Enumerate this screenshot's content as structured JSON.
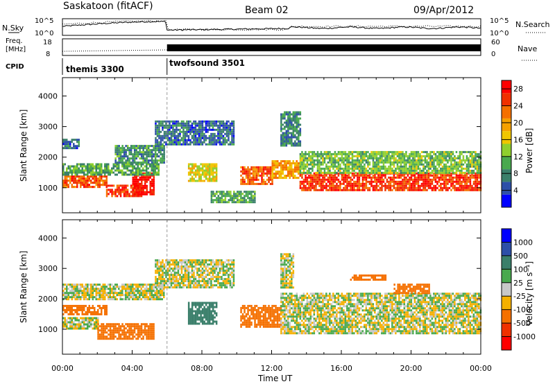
{
  "header": {
    "title": "Saskatoon (fitACF)",
    "beam": "Beam 02",
    "date": "09/Apr/2012"
  },
  "summary": {
    "nsky_label": "N.Sky",
    "nsearch_label": "N.Search",
    "freq_label_line1": "Freq.",
    "freq_label_line2": "[MHz]",
    "nave_label": "Nave",
    "cpid_label": "CPID",
    "noise_ticks": [
      "10^5",
      "10^0"
    ],
    "freq_ticks": [
      "18",
      "8"
    ],
    "nave_ticks": [
      "60",
      "0"
    ]
  },
  "cpid": [
    {
      "name": "themis 3300",
      "start_hour": 0,
      "end_hour": 6.0
    },
    {
      "name": "twofsound 3501",
      "start_hour": 6.0,
      "end_hour": 24
    }
  ],
  "chart_data": [
    {
      "type": "heatmap",
      "parameter": "power",
      "ylabel": "Slant Range [km]",
      "xlabel": "Time UT",
      "x_ticks": [
        "00:00",
        "04:00",
        "08:00",
        "12:00",
        "16:00",
        "20:00",
        "00:00"
      ],
      "xlim_hours": [
        0,
        24
      ],
      "ylim_km": [
        180,
        4600
      ],
      "y_ticks": [
        1000,
        2000,
        3000,
        4000
      ],
      "colorbar": {
        "label": "Power [dB]",
        "ticks": [
          "4",
          "8",
          "12",
          "16",
          "20",
          "24",
          "28"
        ],
        "range": [
          0,
          30
        ],
        "colors": [
          "#0000ff",
          "#2d4fa8",
          "#3a7f6a",
          "#49a94e",
          "#8fcf2e",
          "#f0c600",
          "#f5a000",
          "#f57000",
          "#f03000",
          "#ff0000"
        ]
      },
      "echo_bands": [
        {
          "t0": 0.0,
          "t1": 2.5,
          "r0": 1000,
          "r1": 1400,
          "value": 24
        },
        {
          "t0": 2.5,
          "t1": 4.5,
          "r0": 700,
          "r1": 1100,
          "value": 26
        },
        {
          "t0": 4.0,
          "t1": 5.2,
          "r0": 800,
          "r1": 1500,
          "value": 28
        },
        {
          "t0": 0.0,
          "t1": 5.5,
          "r0": 1400,
          "r1": 1800,
          "value": 10
        },
        {
          "t0": 0.0,
          "t1": 0.9,
          "r0": 2300,
          "r1": 2600,
          "value": 6
        },
        {
          "t0": 3.0,
          "t1": 5.8,
          "r0": 1800,
          "r1": 2400,
          "value": 9
        },
        {
          "t0": 5.3,
          "t1": 9.8,
          "r0": 2400,
          "r1": 3200,
          "value": 6
        },
        {
          "t0": 7.2,
          "t1": 8.8,
          "r0": 1200,
          "r1": 1800,
          "value": 16
        },
        {
          "t0": 10.2,
          "t1": 12.0,
          "r0": 1100,
          "r1": 1700,
          "value": 24
        },
        {
          "t0": 12.0,
          "t1": 13.6,
          "r0": 1300,
          "r1": 1900,
          "value": 20
        },
        {
          "t0": 12.5,
          "t1": 13.6,
          "r0": 2400,
          "r1": 3500,
          "value": 8
        },
        {
          "t0": 13.6,
          "t1": 24.0,
          "r0": 900,
          "r1": 1500,
          "value": 26
        },
        {
          "t0": 13.6,
          "t1": 24.0,
          "r0": 1500,
          "r1": 2200,
          "value": 12
        },
        {
          "t0": 8.5,
          "t1": 11.0,
          "r0": 500,
          "r1": 900,
          "value": 10
        }
      ]
    },
    {
      "type": "heatmap",
      "parameter": "velocity",
      "ylabel": "Slant Range [km]",
      "xlabel": "Time UT",
      "x_ticks": [
        "00:00",
        "04:00",
        "08:00",
        "12:00",
        "16:00",
        "20:00",
        "00:00"
      ],
      "xlim_hours": [
        0,
        24
      ],
      "ylim_km": [
        180,
        4600
      ],
      "y_ticks": [
        1000,
        2000,
        3000,
        4000
      ],
      "colorbar": {
        "label": "Velocity [m s⁻¹]",
        "ticks": [
          "1000",
          "500",
          "100",
          "25",
          "-25",
          "-100",
          "-500",
          "-1000"
        ],
        "colors": [
          "#0000ff",
          "#2d4fa8",
          "#3a7f6a",
          "#49a94e",
          "#c8c8c8",
          "#f5b000",
          "#f57000",
          "#f03000",
          "#ff0000"
        ]
      },
      "echo_bands": [
        {
          "t0": 0.0,
          "t1": 2.0,
          "r0": 1000,
          "r1": 1400,
          "value": 0
        },
        {
          "t0": 0.0,
          "t1": 2.5,
          "r0": 1500,
          "r1": 1800,
          "value": -200
        },
        {
          "t0": 2.0,
          "t1": 5.2,
          "r0": 700,
          "r1": 1200,
          "value": -300
        },
        {
          "t0": 0.0,
          "t1": 5.8,
          "r0": 2000,
          "r1": 2500,
          "value": 0
        },
        {
          "t0": 5.3,
          "t1": 9.8,
          "r0": 2400,
          "r1": 3300,
          "value": 0
        },
        {
          "t0": 7.2,
          "t1": 8.8,
          "r0": 1200,
          "r1": 1900,
          "value": 200
        },
        {
          "t0": 10.2,
          "t1": 12.5,
          "r0": 1100,
          "r1": 1800,
          "value": -300
        },
        {
          "t0": 12.5,
          "t1": 24.0,
          "r0": 900,
          "r1": 2200,
          "value": 0
        },
        {
          "t0": 12.5,
          "t1": 13.2,
          "r0": 2400,
          "r1": 3500,
          "value": 0
        },
        {
          "t0": 19.0,
          "t1": 21.0,
          "r0": 2200,
          "r1": 2500,
          "value": -300
        },
        {
          "t0": 16.5,
          "t1": 18.5,
          "r0": 2600,
          "r1": 2800,
          "value": -200
        }
      ]
    }
  ]
}
